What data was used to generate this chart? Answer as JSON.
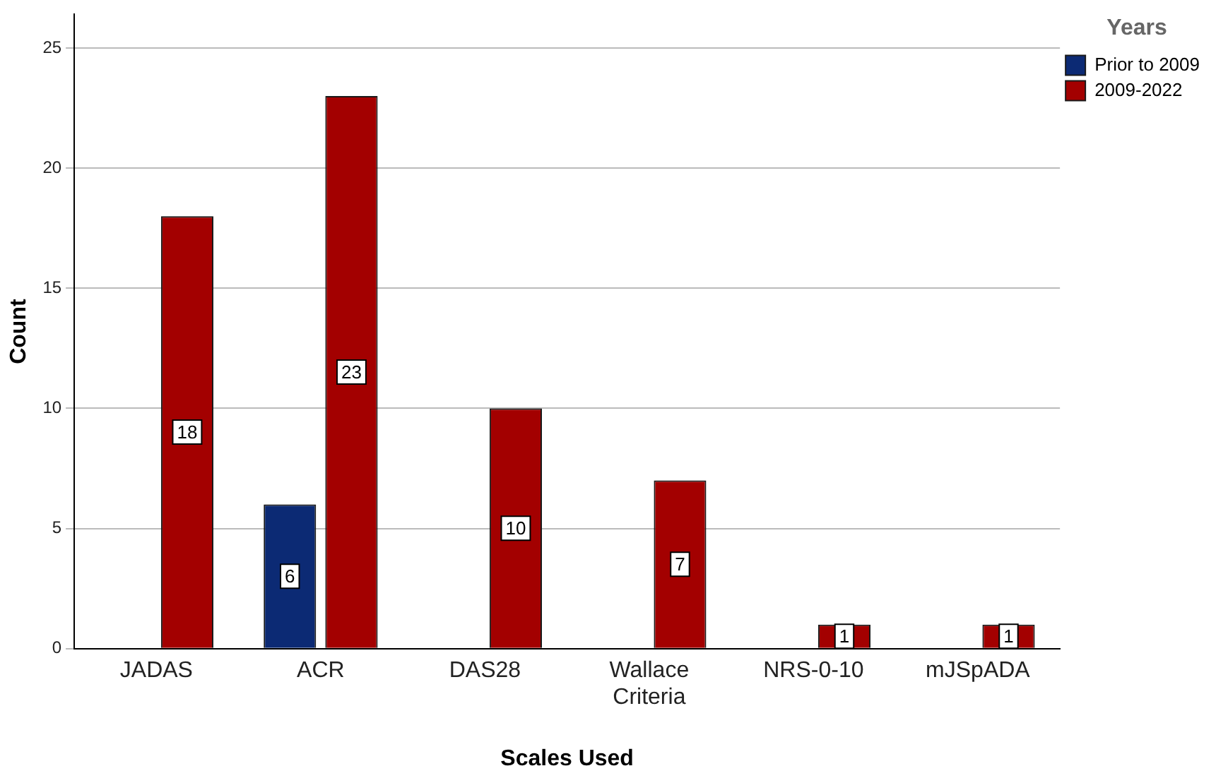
{
  "chart_data": {
    "type": "bar",
    "xlabel": "Scales Used",
    "ylabel": "Count",
    "legend_title": "Years",
    "categories": [
      "JADAS",
      "ACR",
      "DAS28",
      "Wallace Criteria",
      "NRS-0-10",
      "mJSpADA"
    ],
    "series": [
      {
        "name": "Prior to 2009",
        "color": "#0c2a74",
        "values": [
          null,
          6,
          null,
          null,
          null,
          null
        ]
      },
      {
        "name": "2009-2022",
        "color": "#a30000",
        "values": [
          18,
          23,
          10,
          7,
          1,
          1
        ]
      }
    ],
    "ylim": [
      0,
      26.4
    ],
    "yticks": [
      0,
      5,
      10,
      15,
      20,
      25
    ],
    "grid": "y",
    "legend": "top right",
    "data_labels": true
  }
}
